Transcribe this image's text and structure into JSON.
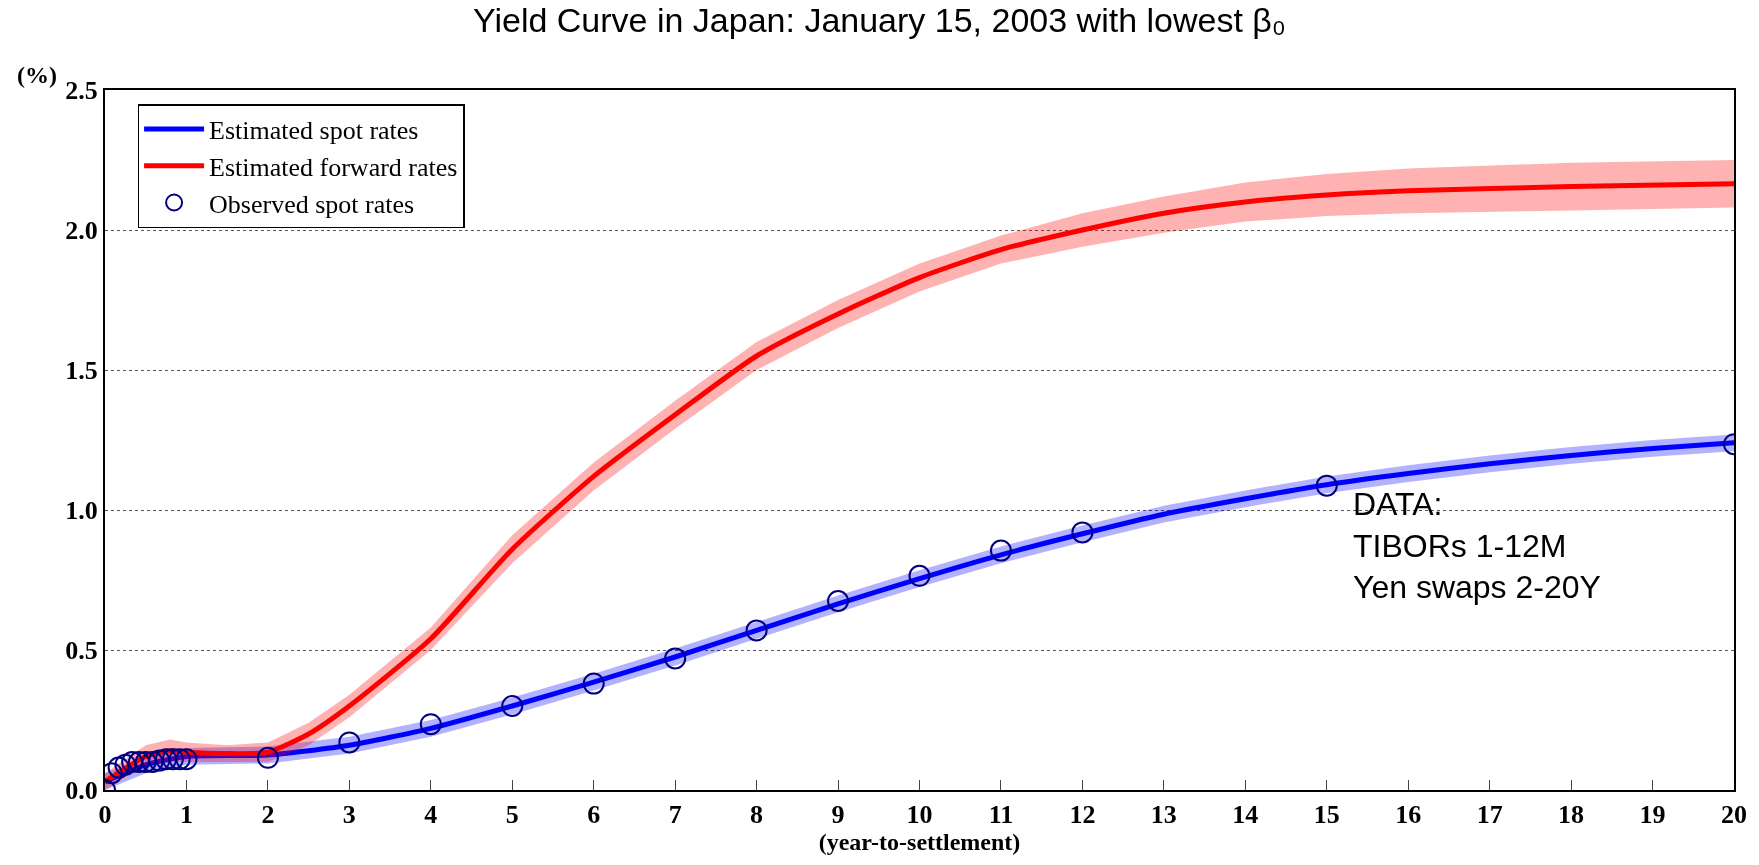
{
  "chart_data": {
    "type": "line",
    "title": "Yield Curve in Japan: January 15, 2003 with lowest β₀",
    "xlabel": "(year-to-settlement)",
    "ylabel": "(%)",
    "xlim": [
      0,
      20
    ],
    "xticks": [
      0,
      1,
      2,
      3,
      4,
      5,
      6,
      7,
      8,
      9,
      10,
      11,
      12,
      13,
      14,
      15,
      16,
      17,
      18,
      19,
      20
    ],
    "ylim": [
      0,
      2.5
    ],
    "yticks": [
      {
        "value": 0,
        "label": "0.0"
      },
      {
        "value": 0.5,
        "label": "0.5"
      },
      {
        "value": 1,
        "label": "1.0"
      },
      {
        "value": 1.5,
        "label": "1.5"
      },
      {
        "value": 2,
        "label": "2.0"
      },
      {
        "value": 2.5,
        "label": "2.5"
      }
    ],
    "grid": "y",
    "legend": "top left",
    "line_style": "solid",
    "annotations": [
      "DATA:\nTIBORs 1-12M\nYen swaps 2-20Y"
    ],
    "series": [
      {
        "name": "Estimated spot rates",
        "marker": "none",
        "color": "#0000ff",
        "x": [
          0,
          0.5,
          1,
          2,
          3,
          4,
          5,
          6,
          7,
          8,
          9,
          10,
          11,
          12,
          13,
          14,
          15,
          16,
          17,
          18,
          19,
          20
        ],
        "values": [
          0.03,
          0.09,
          0.12,
          0.125,
          0.16,
          0.22,
          0.3,
          0.385,
          0.475,
          0.57,
          0.665,
          0.755,
          0.84,
          0.915,
          0.985,
          1.04,
          1.09,
          1.13,
          1.165,
          1.195,
          1.22,
          1.24
        ],
        "lower": [
          0.0,
          0.06,
          0.09,
          0.095,
          0.13,
          0.19,
          0.27,
          0.355,
          0.445,
          0.54,
          0.635,
          0.725,
          0.81,
          0.885,
          0.955,
          1.01,
          1.06,
          1.1,
          1.135,
          1.165,
          1.19,
          1.21
        ],
        "upper": [
          0.06,
          0.12,
          0.15,
          0.155,
          0.19,
          0.25,
          0.33,
          0.415,
          0.505,
          0.6,
          0.695,
          0.785,
          0.87,
          0.945,
          1.015,
          1.07,
          1.12,
          1.16,
          1.195,
          1.225,
          1.25,
          1.27
        ]
      },
      {
        "name": "Estimated forward rates",
        "marker": "none",
        "color": "#ff0000",
        "x": [
          0,
          0.5,
          0.8,
          1,
          1.5,
          2,
          2.5,
          3,
          4,
          5,
          6,
          7,
          8,
          9,
          10,
          11,
          12,
          13,
          14,
          15,
          16,
          18,
          20
        ],
        "values": [
          0.03,
          0.12,
          0.14,
          0.135,
          0.13,
          0.135,
          0.2,
          0.3,
          0.54,
          0.86,
          1.12,
          1.34,
          1.55,
          1.7,
          1.83,
          1.93,
          2.0,
          2.06,
          2.1,
          2.125,
          2.14,
          2.155,
          2.165
        ],
        "lower": [
          0.0,
          0.09,
          0.1,
          0.1,
          0.1,
          0.1,
          0.16,
          0.26,
          0.5,
          0.81,
          1.07,
          1.29,
          1.5,
          1.65,
          1.78,
          1.88,
          1.94,
          1.99,
          2.03,
          2.05,
          2.06,
          2.07,
          2.08
        ],
        "upper": [
          0.06,
          0.16,
          0.18,
          0.17,
          0.16,
          0.17,
          0.24,
          0.34,
          0.58,
          0.91,
          1.17,
          1.39,
          1.6,
          1.75,
          1.88,
          1.98,
          2.06,
          2.12,
          2.17,
          2.2,
          2.22,
          2.24,
          2.25
        ]
      },
      {
        "name": "Observed spot rates",
        "type": "scatter",
        "marker": "circle",
        "color": "#000080",
        "x": [
          0,
          0.083,
          0.167,
          0.25,
          0.333,
          0.417,
          0.5,
          0.583,
          0.667,
          0.75,
          0.833,
          0.917,
          1,
          2,
          3,
          4,
          5,
          6,
          7,
          8,
          9,
          10,
          11,
          12,
          15,
          20
        ],
        "values": [
          0.0,
          0.06,
          0.08,
          0.09,
          0.1,
          0.1,
          0.1,
          0.1,
          0.105,
          0.11,
          0.11,
          0.11,
          0.11,
          0.115,
          0.17,
          0.235,
          0.3,
          0.38,
          0.47,
          0.57,
          0.675,
          0.765,
          0.855,
          0.92,
          1.087,
          1.235
        ]
      }
    ]
  }
}
